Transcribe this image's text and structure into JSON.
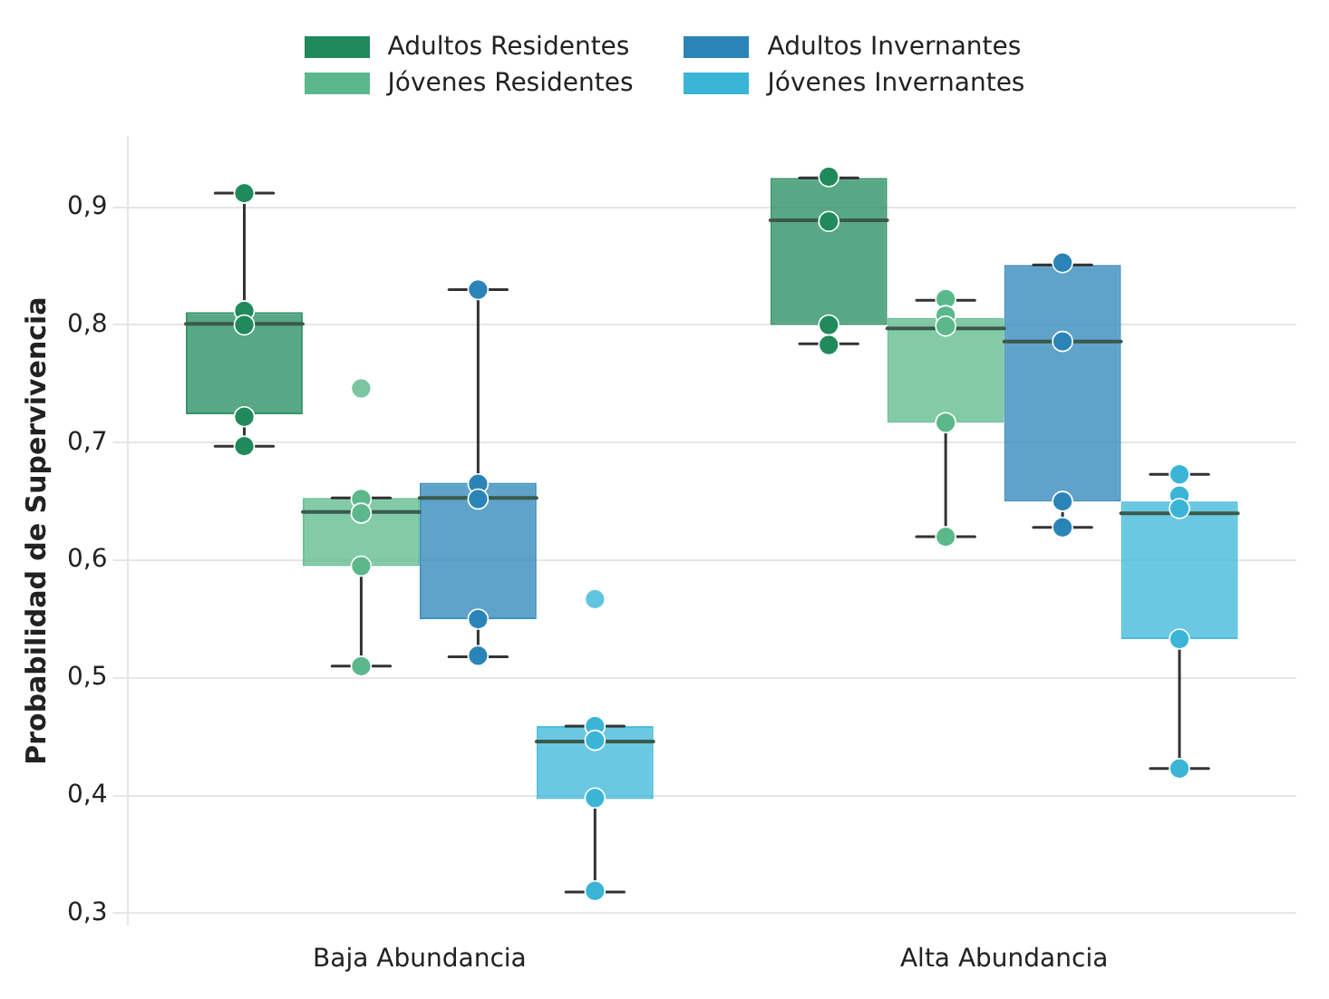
{
  "chart_data": {
    "type": "box",
    "ylabel": "Probabilidad de Supervivencia",
    "categories": [
      "Baja Abundancia",
      "Alta Abundancia"
    ],
    "ylim": [
      0.29,
      0.96
    ],
    "yticks": [
      {
        "value": 0.3,
        "label": "0,3"
      },
      {
        "value": 0.4,
        "label": "0,4"
      },
      {
        "value": 0.5,
        "label": "0,5"
      },
      {
        "value": 0.6,
        "label": "0,6"
      },
      {
        "value": 0.7,
        "label": "0,7"
      },
      {
        "value": 0.8,
        "label": "0,8"
      },
      {
        "value": 0.9,
        "label": "0,9"
      }
    ],
    "grid": "y",
    "legend": "top",
    "marker": "circle",
    "series": [
      {
        "type": "box",
        "name": "Adultos Residentes",
        "color": "#208a5c",
        "boxes": [
          {
            "low": 0.697,
            "q1": 0.724,
            "median": 0.801,
            "q3": 0.811,
            "high": 0.912
          },
          {
            "low": 0.784,
            "q1": 0.8,
            "median": 0.889,
            "q3": 0.925,
            "high": 0.925
          }
        ]
      },
      {
        "type": "box",
        "name": "Jóvenes Residentes",
        "color": "#5ab88a",
        "boxes": [
          {
            "low": 0.51,
            "q1": 0.595,
            "median": 0.641,
            "q3": 0.653,
            "high": 0.653,
            "outliers": [
              0.746
            ]
          },
          {
            "low": 0.62,
            "q1": 0.717,
            "median": 0.797,
            "q3": 0.806,
            "high": 0.821
          }
        ]
      },
      {
        "type": "box",
        "name": "Adultos Invernantes",
        "color": "#2a84b8",
        "boxes": [
          {
            "low": 0.518,
            "q1": 0.55,
            "median": 0.653,
            "q3": 0.666,
            "high": 0.83
          },
          {
            "low": 0.628,
            "q1": 0.65,
            "median": 0.786,
            "q3": 0.851,
            "high": 0.851
          }
        ]
      },
      {
        "type": "box",
        "name": "Jóvenes Invernantes",
        "color": "#3ab5d8",
        "boxes": [
          {
            "low": 0.318,
            "q1": 0.397,
            "median": 0.446,
            "q3": 0.459,
            "high": 0.459,
            "outliers": [
              0.567
            ]
          },
          {
            "low": 0.423,
            "q1": 0.533,
            "median": 0.64,
            "q3": 0.65,
            "high": 0.673
          }
        ]
      },
      {
        "type": "scatter",
        "color": "#208a5c",
        "x": [
          "Baja Abundancia",
          "Baja Abundancia",
          "Baja Abundancia",
          "Baja Abundancia",
          "Baja Abundancia",
          "Alta Abundancia",
          "Alta Abundancia",
          "Alta Abundancia",
          "Alta Abundancia"
        ],
        "values": [
          0.912,
          0.812,
          0.8,
          0.722,
          0.697,
          0.926,
          0.888,
          0.8,
          0.783
        ]
      },
      {
        "type": "scatter",
        "color": "#5ab88a",
        "x": [
          "Baja Abundancia",
          "Baja Abundancia",
          "Baja Abundancia",
          "Baja Abundancia",
          "Alta Abundancia",
          "Alta Abundancia",
          "Alta Abundancia",
          "Alta Abundancia",
          "Alta Abundancia"
        ],
        "values": [
          0.652,
          0.64,
          0.595,
          0.51,
          0.822,
          0.808,
          0.799,
          0.717,
          0.62
        ]
      },
      {
        "type": "scatter",
        "color": "#2a84b8",
        "x": [
          "Baja Abundancia",
          "Baja Abundancia",
          "Baja Abundancia",
          "Baja Abundancia",
          "Baja Abundancia",
          "Alta Abundancia",
          "Alta Abundancia",
          "Alta Abundancia",
          "Alta Abundancia"
        ],
        "values": [
          0.83,
          0.665,
          0.652,
          0.55,
          0.519,
          0.853,
          0.786,
          0.65,
          0.628
        ]
      },
      {
        "type": "scatter",
        "color": "#3ab5d8",
        "x": [
          "Baja Abundancia",
          "Baja Abundancia",
          "Baja Abundancia",
          "Baja Abundancia",
          "Alta Abundancia",
          "Alta Abundancia",
          "Alta Abundancia",
          "Alta Abundancia",
          "Alta Abundancia"
        ],
        "values": [
          0.459,
          0.447,
          0.398,
          0.319,
          0.673,
          0.655,
          0.644,
          0.533,
          0.423
        ]
      }
    ]
  }
}
